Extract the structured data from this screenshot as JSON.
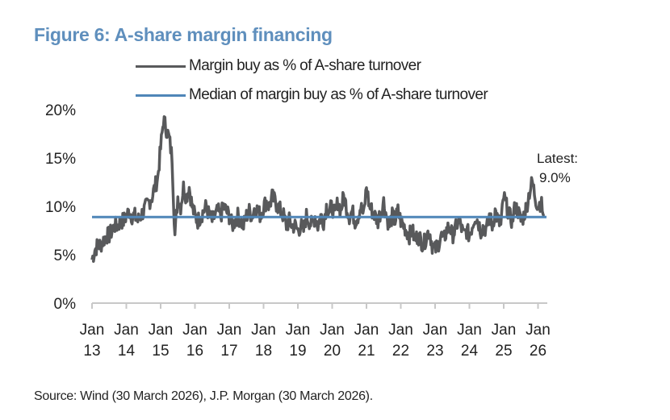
{
  "chart_data": {
    "type": "line",
    "title": "Figure 6: A-share margin financing",
    "source": "Source: Wind (30 March 2026), J.P. Morgan (30 March 2026).",
    "ylim": [
      0,
      20
    ],
    "y_ticks": [
      "0%",
      "5%",
      "10%",
      "15%",
      "20%"
    ],
    "y_tick_values": [
      0,
      5,
      10,
      15,
      20
    ],
    "x_ticks": [
      {
        "month": "Jan",
        "year": "13"
      },
      {
        "month": "Jan",
        "year": "14"
      },
      {
        "month": "Jan",
        "year": "15"
      },
      {
        "month": "Jan",
        "year": "16"
      },
      {
        "month": "Jan",
        "year": "17"
      },
      {
        "month": "Jan",
        "year": "18"
      },
      {
        "month": "Jan",
        "year": "19"
      },
      {
        "month": "Jan",
        "year": "20"
      },
      {
        "month": "Jan",
        "year": "21"
      },
      {
        "month": "Jan",
        "year": "22"
      },
      {
        "month": "Jan",
        "year": "23"
      },
      {
        "month": "Jan",
        "year": "24"
      },
      {
        "month": "Jan",
        "year": "25"
      },
      {
        "month": "Jan",
        "year": "26"
      }
    ],
    "grid": false,
    "legend_placement": "top",
    "series": [
      {
        "name": "Margin buy as % of A-share turnover",
        "color": "#58595b",
        "monthly_values_by_year": {
          "2013": [
            4.5,
            5.5,
            6,
            6,
            6.5,
            7,
            7,
            7.5,
            8,
            8,
            8.5,
            8.5
          ],
          "2014": [
            9,
            9.5,
            9,
            9,
            8.5,
            9,
            9.5,
            10,
            10.5,
            11,
            12,
            13
          ],
          "2015": [
            16,
            19,
            18,
            17,
            15,
            7,
            11,
            10,
            12,
            11,
            12,
            10
          ],
          "2016": [
            9,
            8.5,
            9,
            9.5,
            10,
            9,
            8.5,
            9,
            9.5,
            9,
            10,
            9.5
          ],
          "2017": [
            9,
            8,
            8.5,
            9,
            8.5,
            8,
            9,
            9.5,
            9,
            10,
            9.5,
            9
          ],
          "2018": [
            10,
            10.5,
            10,
            11,
            10.5,
            10,
            9.5,
            9,
            8,
            8.5,
            8,
            8
          ],
          "2019": [
            7.5,
            8,
            7.5,
            9,
            8.5,
            8,
            9,
            8,
            9,
            8.5,
            10,
            9.5
          ],
          "2020": [
            10,
            9,
            10.5,
            9.5,
            11,
            10,
            9,
            9.5,
            8.5,
            9,
            10,
            9
          ],
          "2021": [
            12,
            10,
            9.5,
            9,
            8.5,
            9.5,
            10.5,
            9,
            8,
            9,
            8.5,
            9.5
          ],
          "2022": [
            8.5,
            8,
            7.5,
            7,
            7.5,
            6.5,
            7,
            6.5,
            6,
            7,
            7.5,
            6
          ],
          "2023": [
            5.5,
            6,
            7,
            6.5,
            7.5,
            8,
            7,
            7.5,
            8.5,
            8,
            7,
            7.5
          ],
          "2024": [
            7,
            8,
            9,
            8.5,
            7.5,
            8,
            7.5,
            9,
            8,
            9.5,
            8.5,
            8
          ],
          "2025": [
            11,
            10,
            9,
            8.5,
            10,
            9.5,
            8.5,
            9,
            10,
            11.5,
            12.5,
            11
          ],
          "2026": [
            10,
            10.5,
            9
          ]
        }
      },
      {
        "name": "Median of margin buy as % of A-share turnover",
        "color": "#4f86b8",
        "value": 8.9
      }
    ],
    "annotation": {
      "label": "Latest:",
      "value": "9.0%"
    }
  }
}
